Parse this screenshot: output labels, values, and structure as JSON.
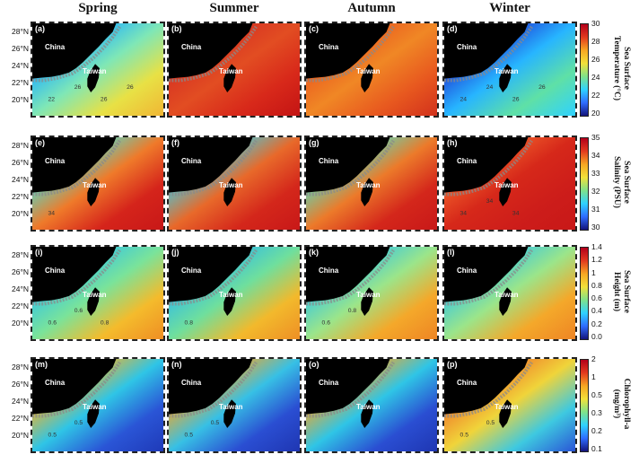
{
  "seasons": [
    "Spring",
    "Summer",
    "Autumn",
    "Winter"
  ],
  "rows": [
    {
      "panel_labels": [
        "(a)",
        "(b)",
        "(c)",
        "(d)"
      ],
      "lat_labels": [
        "28°N",
        "26°N",
        "24°N",
        "22°N",
        "20°N"
      ],
      "colorbar": {
        "title_line1": "Sea Surface",
        "title_line2": "Temperature (°C)",
        "ticks": [
          "30",
          "28",
          "26",
          "24",
          "22",
          "20"
        ],
        "colors": [
          "#b3001b",
          "#e23a1f",
          "#f6a623",
          "#f2e13a",
          "#7fe28a",
          "#2fd2ff",
          "#2f6cff",
          "#14147a"
        ]
      },
      "panels": [
        {
          "stops": [
            "#1b2fd4",
            "#1fb0ff",
            "#7fe7b6",
            "#e8e145",
            "#f0b634"
          ],
          "contour_labels": [
            "22",
            "26",
            "26",
            "26"
          ]
        },
        {
          "stops": [
            "#c51d1d",
            "#d63122",
            "#e24d22",
            "#d8291a",
            "#c41414"
          ],
          "contour_labels": []
        },
        {
          "stops": [
            "#d22e1f",
            "#ea5a1f",
            "#f08725",
            "#e8591f",
            "#d2311c"
          ],
          "contour_labels": []
        },
        {
          "stops": [
            "#14147a",
            "#1f3fd6",
            "#27b5ff",
            "#5fe0a6",
            "#2fd2ff"
          ],
          "contour_labels": [
            "24",
            "24",
            "26",
            "26"
          ]
        }
      ]
    },
    {
      "panel_labels": [
        "(e)",
        "(f)",
        "(g)",
        "(h)"
      ],
      "lat_labels": [
        "28°N",
        "26°N",
        "24°N",
        "22°N",
        "20°N"
      ],
      "colorbar": {
        "title_line1": "Sea Surface",
        "title_line2": "Salinity (PSU)",
        "ticks": [
          "35",
          "34",
          "33",
          "32",
          "31",
          "30"
        ],
        "colors": [
          "#b3001b",
          "#e23a1f",
          "#f6a623",
          "#f2e13a",
          "#7fe28a",
          "#2fd2ff",
          "#2f6cff",
          "#14147a"
        ]
      },
      "panels": [
        {
          "stops": [
            "#2b8cf2",
            "#57d8c5",
            "#ef7a2a",
            "#d5241b",
            "#c81818"
          ],
          "contour_labels": [
            "34"
          ]
        },
        {
          "stops": [
            "#2f8df0",
            "#49c7d8",
            "#e8692a",
            "#d4271b",
            "#c81818"
          ],
          "contour_labels": []
        },
        {
          "stops": [
            "#2a95f4",
            "#5fd6b4",
            "#ec7a2a",
            "#d4271b",
            "#c81818"
          ],
          "contour_labels": []
        },
        {
          "stops": [
            "#22a4f7",
            "#f05f2a",
            "#d6281a",
            "#cd1d1a",
            "#c81818"
          ],
          "contour_labels": [
            "34",
            "34",
            "34"
          ]
        }
      ]
    },
    {
      "panel_labels": [
        "(i)",
        "(j)",
        "(k)",
        "(l)"
      ],
      "lat_labels": [
        "28°N",
        "26°N",
        "24°N",
        "22°N",
        "20°N"
      ],
      "colorbar": {
        "title_line1": "Sea Surface",
        "title_line2": "Height (m)",
        "ticks": [
          "1.4",
          "1.2",
          "1",
          "0.8",
          "0.6",
          "0.4",
          "0.2",
          "0.0"
        ],
        "colors": [
          "#b3001b",
          "#e23a1f",
          "#f6a623",
          "#f2e13a",
          "#7fe28a",
          "#2fd2ff",
          "#2f6cff",
          "#14147a"
        ]
      },
      "panels": [
        {
          "stops": [
            "#2a7bea",
            "#35c6e3",
            "#7ae39a",
            "#f4bb2c",
            "#ef8e24"
          ],
          "contour_labels": [
            "0.6",
            "0.6",
            "0.8"
          ]
        },
        {
          "stops": [
            "#2a72e8",
            "#31bce5",
            "#6fdf9d",
            "#f2b92c",
            "#ee8f25"
          ],
          "contour_labels": [
            "0.8"
          ]
        },
        {
          "stops": [
            "#2a7bea",
            "#39c8e0",
            "#9be58a",
            "#f4a82a",
            "#ee8524"
          ],
          "contour_labels": [
            "0.6",
            "0.8"
          ]
        },
        {
          "stops": [
            "#2a7bea",
            "#39c8e0",
            "#9be58a",
            "#f4a82a",
            "#ee8524"
          ],
          "contour_labels": []
        }
      ]
    },
    {
      "panel_labels": [
        "(m)",
        "(n)",
        "(o)",
        "(p)"
      ],
      "lat_labels": [
        "28°N",
        "26°N",
        "24°N",
        "22°N",
        "20°N"
      ],
      "colorbar": {
        "title_line1": "Chlorophyll-a",
        "title_line2": "(mg/m³)",
        "ticks": [
          "2",
          "1",
          "0.5",
          "0.3",
          "0.2",
          "0.1"
        ],
        "colors": [
          "#b3001b",
          "#e23a1f",
          "#f6a623",
          "#f2e13a",
          "#7fe28a",
          "#2fd2ff",
          "#2f6cff",
          "#14147a"
        ]
      },
      "panels": [
        {
          "stops": [
            "#e2321c",
            "#f0b42a",
            "#2fc5e6",
            "#2a55d6",
            "#1f3ab8"
          ],
          "contour_labels": [
            "0.5",
            "0.5"
          ]
        },
        {
          "stops": [
            "#d6241b",
            "#f0a82a",
            "#37c0e5",
            "#2a4ed2",
            "#1f36b2"
          ],
          "contour_labels": [
            "0.5",
            "0.5"
          ]
        },
        {
          "stops": [
            "#d6241b",
            "#f0a82a",
            "#2fc5e6",
            "#2a4ed2",
            "#1f36b2"
          ],
          "contour_labels": []
        },
        {
          "stops": [
            "#c81818",
            "#ef7a2a",
            "#f0d43a",
            "#3ec9e0",
            "#2a55d6"
          ],
          "contour_labels": [
            "0.5",
            "0.5"
          ]
        }
      ]
    }
  ],
  "labels": {
    "china": "China",
    "taiwan": "Taiwan"
  }
}
